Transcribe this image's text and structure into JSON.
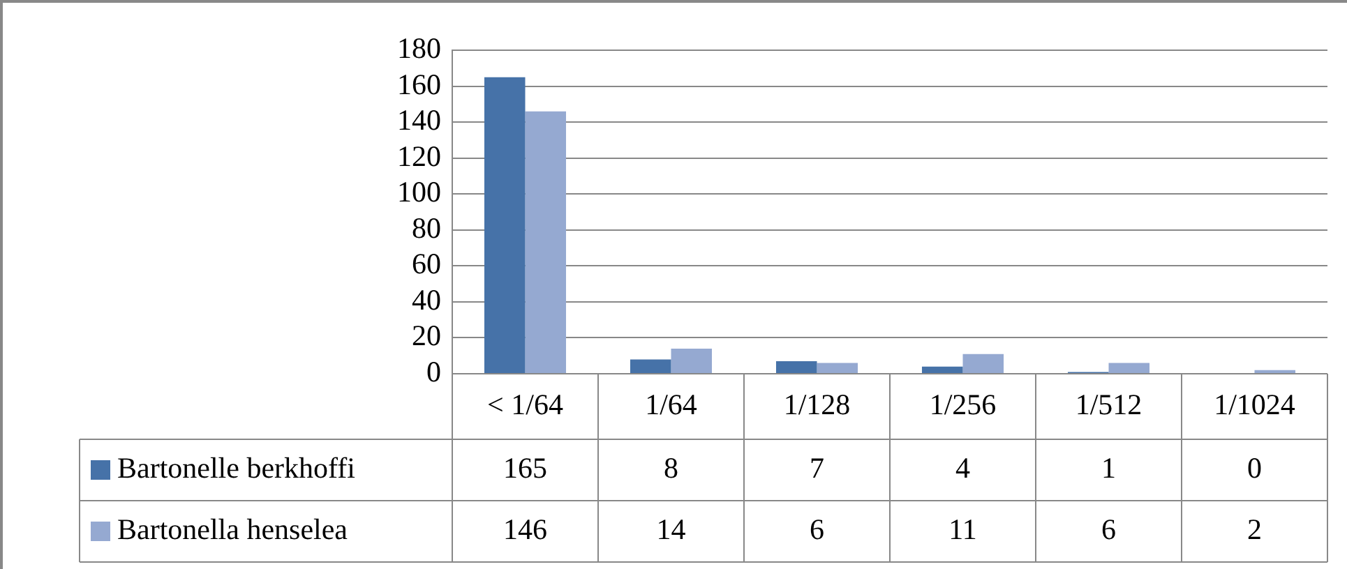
{
  "chart_data": {
    "type": "bar",
    "categories": [
      "< 1/64",
      "1/64",
      "1/128",
      "1/256",
      "1/512",
      "1/1024"
    ],
    "series": [
      {
        "name": "Bartonelle berkhoffi",
        "color": "#4672a8",
        "values": [
          165,
          8,
          7,
          4,
          1,
          0
        ]
      },
      {
        "name": "Bartonella henselea",
        "color": "#95a9d1",
        "values": [
          146,
          14,
          6,
          11,
          6,
          2
        ]
      }
    ],
    "ylim": [
      0,
      180
    ],
    "yticks": [
      0,
      20,
      40,
      60,
      80,
      100,
      120,
      140,
      160,
      180
    ],
    "grid": "y",
    "legend": "bottom",
    "data_labels": true
  }
}
